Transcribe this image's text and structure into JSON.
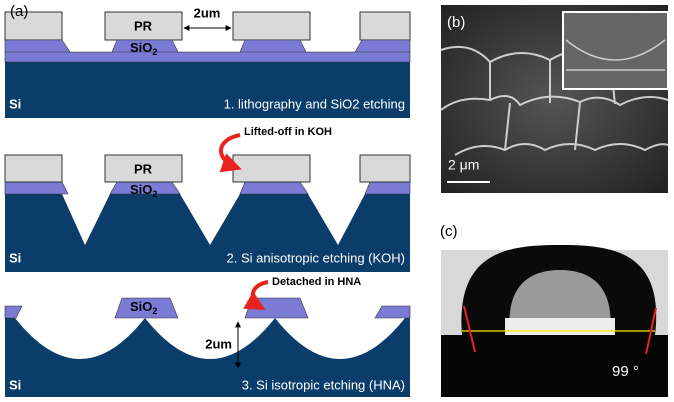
{
  "panel_a": {
    "label": "(a)",
    "step1": {
      "pr": "PR",
      "gap": "2um",
      "sio2": "SiO",
      "sio2_sub": "2",
      "si": "Si",
      "caption": "1. lithography and SiO2 etching"
    },
    "step2": {
      "pr": "PR",
      "sio2": "SiO",
      "sio2_sub": "2",
      "si": "Si",
      "note": "Lifted-off in KOH",
      "caption": "2. Si anisotropic etching (KOH)"
    },
    "step3": {
      "sio2": "SiO",
      "sio2_sub": "2",
      "depth": "2um",
      "si": "Si",
      "note": "Detached in HNA",
      "caption": "3. Si isotropic etching (HNA)"
    }
  },
  "panel_b": {
    "label": "(b)",
    "scale_bar": "2 μm"
  },
  "panel_c": {
    "label": "(c)",
    "angle": "99 °"
  }
}
